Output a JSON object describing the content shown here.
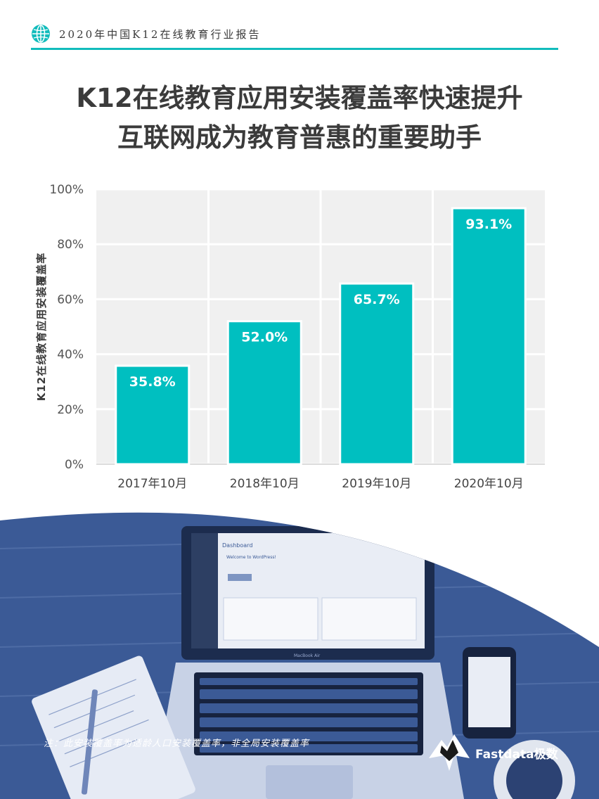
{
  "header": {
    "report_title": "2020年中国K12在线教育行业报告"
  },
  "headline": {
    "line1": "K12在线教育应用安装覆盖率快速提升",
    "line2": "互联网成为教育普惠的重要助手"
  },
  "chart_data": {
    "type": "bar",
    "title": "",
    "ylabel": "K12在线教育应用安装覆盖率",
    "xlabel": "",
    "categories": [
      "2017年10月",
      "2018年10月",
      "2019年10月",
      "2020年10月"
    ],
    "values": [
      35.8,
      52.0,
      65.7,
      93.1
    ],
    "value_labels": [
      "35.8%",
      "52.0%",
      "65.7%",
      "93.1%"
    ],
    "ylim": [
      0,
      100
    ],
    "yticks": [
      "0%",
      "20%",
      "40%",
      "60%",
      "80%",
      "100%"
    ],
    "grid": true,
    "bar_color": "#00bfc0",
    "plot_bg": "#f0f0f0"
  },
  "footnote": "注：此安装覆盖率为适龄人口安装覆盖率，非全局安装覆盖率",
  "brand": {
    "name": "Fastdata极数"
  },
  "photo": {
    "screen_title": "Dashboard",
    "welcome": "Welcome to WordPress!",
    "laptop_label": "MacBook Air"
  }
}
